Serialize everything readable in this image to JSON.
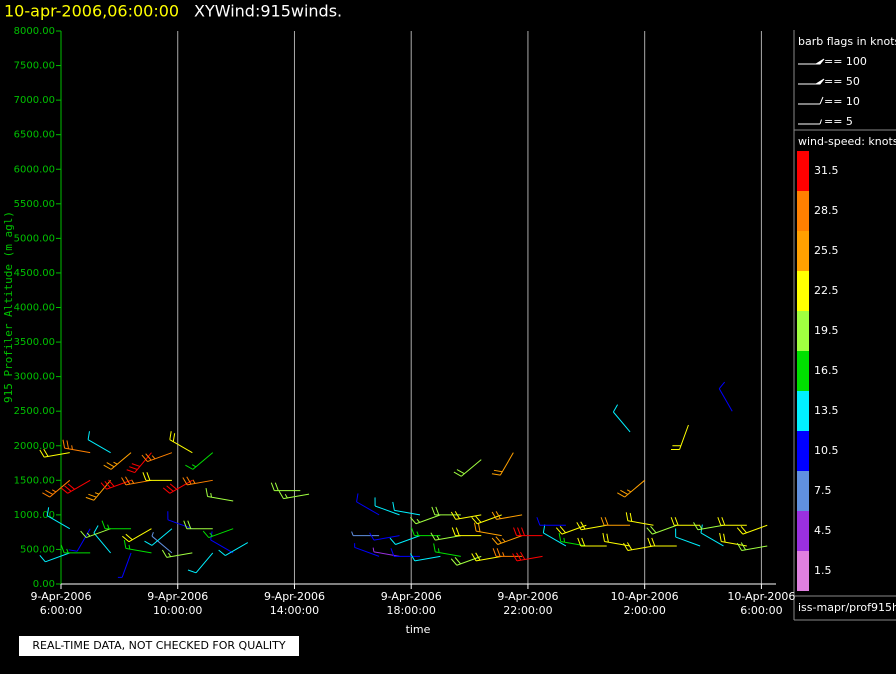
{
  "chart_data": {
    "type": "wind-barb",
    "title": "10-apr-2006,06:00:00",
    "subtitle": "XYWind:915winds.",
    "ylabel": "915 Profiler Altitude (m agl)",
    "xlabel": "time",
    "xlim": [
      6,
      30.5
    ],
    "xticks": [
      {
        "value": 6,
        "label": [
          "9-Apr-2006",
          "6:00:00"
        ]
      },
      {
        "value": 10,
        "label": [
          "9-Apr-2006",
          "10:00:00"
        ]
      },
      {
        "value": 14,
        "label": [
          "9-Apr-2006",
          "14:00:00"
        ]
      },
      {
        "value": 18,
        "label": [
          "9-Apr-2006",
          "18:00:00"
        ]
      },
      {
        "value": 22,
        "label": [
          "9-Apr-2006",
          "22:00:00"
        ]
      },
      {
        "value": 26,
        "label": [
          "10-Apr-2006",
          "2:00:00"
        ]
      },
      {
        "value": 30,
        "label": [
          "10-Apr-2006",
          "6:00:00"
        ]
      }
    ],
    "ylim": [
      0,
      8000
    ],
    "yticks": [
      {
        "value": 0,
        "label": "0.00"
      },
      {
        "value": 500,
        "label": "500.00"
      },
      {
        "value": 1000,
        "label": "1000.00"
      },
      {
        "value": 1500,
        "label": "1500.00"
      },
      {
        "value": 2000,
        "label": "2000.00"
      },
      {
        "value": 2500,
        "label": "2500.00"
      },
      {
        "value": 3000,
        "label": "3000.00"
      },
      {
        "value": 3500,
        "label": "3500.00"
      },
      {
        "value": 4000,
        "label": "4000.00"
      },
      {
        "value": 4500,
        "label": "4500.00"
      },
      {
        "value": 5000,
        "label": "5000.00"
      },
      {
        "value": 5500,
        "label": "5500.00"
      },
      {
        "value": 6000,
        "label": "6000.00"
      },
      {
        "value": 6500,
        "label": "6500.00"
      },
      {
        "value": 7000,
        "label": "7000.00"
      },
      {
        "value": 7500,
        "label": "7500.00"
      },
      {
        "value": 8000,
        "label": "8000.00"
      }
    ],
    "grid": true,
    "barb_flags_title": "barb flags in knots",
    "barb_flags": [
      "== 100",
      "== 50",
      "== 10",
      "== 5"
    ],
    "colorbar_title": "wind-speed: knots",
    "colorbar": {
      "values": [
        31.5,
        28.5,
        25.5,
        22.5,
        19.5,
        16.5,
        13.5,
        10.5,
        7.5,
        4.5,
        1.5
      ],
      "colors": [
        "#ff0000",
        "#ff8000",
        "#ffa000",
        "#ffff00",
        "#a0ff40",
        "#00e000",
        "#00f0ff",
        "#0000ff",
        "#6090e0",
        "#9a30e0",
        "#e080e0"
      ]
    },
    "source": "iss-mapr/prof915h",
    "note": "REAL-TIME DATA, NOT CHECKED FOR QUALITY",
    "barbs": [
      {
        "x": 6.3,
        "y": 450,
        "speed": 14,
        "direction": 250
      },
      {
        "x": 6.3,
        "y": 800,
        "speed": 12,
        "direction": 300
      },
      {
        "x": 6.3,
        "y": 1500,
        "speed": 27,
        "direction": 230
      },
      {
        "x": 6.3,
        "y": 1900,
        "speed": 22,
        "direction": 260
      },
      {
        "x": 7.0,
        "y": 450,
        "speed": 17,
        "direction": 270
      },
      {
        "x": 7.0,
        "y": 800,
        "speed": 10,
        "direction": 210
      },
      {
        "x": 7.0,
        "y": 1500,
        "speed": 31,
        "direction": 240
      },
      {
        "x": 7.0,
        "y": 1900,
        "speed": 29,
        "direction": 280
      },
      {
        "x": 7.7,
        "y": 450,
        "speed": 12,
        "direction": 320
      },
      {
        "x": 7.7,
        "y": 800,
        "speed": 19,
        "direction": 250
      },
      {
        "x": 7.7,
        "y": 1500,
        "speed": 26,
        "direction": 220
      },
      {
        "x": 7.7,
        "y": 1900,
        "speed": 13,
        "direction": 300
      },
      {
        "x": 8.4,
        "y": 450,
        "speed": 9,
        "direction": 200
      },
      {
        "x": 8.4,
        "y": 800,
        "speed": 16,
        "direction": 270
      },
      {
        "x": 8.4,
        "y": 1500,
        "speed": 32,
        "direction": 250
      },
      {
        "x": 8.4,
        "y": 1900,
        "speed": 25,
        "direction": 230
      },
      {
        "x": 9.1,
        "y": 450,
        "speed": 15,
        "direction": 280
      },
      {
        "x": 9.1,
        "y": 800,
        "speed": 22,
        "direction": 240
      },
      {
        "x": 9.1,
        "y": 1500,
        "speed": 29,
        "direction": 260
      },
      {
        "x": 9.1,
        "y": 1900,
        "speed": 31,
        "direction": 220
      },
      {
        "x": 9.8,
        "y": 450,
        "speed": 6,
        "direction": 310
      },
      {
        "x": 9.8,
        "y": 800,
        "speed": 14,
        "direction": 230
      },
      {
        "x": 9.8,
        "y": 1500,
        "speed": 23,
        "direction": 270
      },
      {
        "x": 9.8,
        "y": 1900,
        "speed": 28,
        "direction": 250
      },
      {
        "x": 10.5,
        "y": 450,
        "speed": 18,
        "direction": 260
      },
      {
        "x": 10.5,
        "y": 800,
        "speed": 11,
        "direction": 290
      },
      {
        "x": 10.5,
        "y": 1500,
        "speed": 30,
        "direction": 240
      },
      {
        "x": 10.5,
        "y": 1900,
        "speed": 21,
        "direction": 300
      },
      {
        "x": 11.2,
        "y": 450,
        "speed": 13,
        "direction": 220
      },
      {
        "x": 11.2,
        "y": 800,
        "speed": 20,
        "direction": 270
      },
      {
        "x": 11.2,
        "y": 1500,
        "speed": 27,
        "direction": 260
      },
      {
        "x": 11.2,
        "y": 1900,
        "speed": 16,
        "direction": 230
      },
      {
        "x": 11.9,
        "y": 450,
        "speed": 10,
        "direction": 300
      },
      {
        "x": 11.9,
        "y": 800,
        "speed": 17,
        "direction": 250
      },
      {
        "x": 11.9,
        "y": 1200,
        "speed": 19,
        "direction": 280
      },
      {
        "x": 12.4,
        "y": 600,
        "speed": 12,
        "direction": 240
      },
      {
        "x": 14.2,
        "y": 1350,
        "speed": 20,
        "direction": 270
      },
      {
        "x": 14.5,
        "y": 1300,
        "speed": 18,
        "direction": 260
      },
      {
        "x": 16.9,
        "y": 400,
        "speed": 9,
        "direction": 290
      },
      {
        "x": 16.9,
        "y": 700,
        "speed": 8,
        "direction": 270
      },
      {
        "x": 16.9,
        "y": 1000,
        "speed": 10,
        "direction": 300
      },
      {
        "x": 17.6,
        "y": 400,
        "speed": 5,
        "direction": 280
      },
      {
        "x": 17.6,
        "y": 700,
        "speed": 10,
        "direction": 260
      },
      {
        "x": 17.6,
        "y": 1000,
        "speed": 12,
        "direction": 290
      },
      {
        "x": 18.3,
        "y": 400,
        "speed": 11,
        "direction": 270
      },
      {
        "x": 18.3,
        "y": 700,
        "speed": 13,
        "direction": 250
      },
      {
        "x": 18.3,
        "y": 1000,
        "speed": 14,
        "direction": 280
      },
      {
        "x": 19.0,
        "y": 400,
        "speed": 14,
        "direction": 260
      },
      {
        "x": 19.0,
        "y": 700,
        "speed": 16,
        "direction": 270
      },
      {
        "x": 19.0,
        "y": 1000,
        "speed": 18,
        "direction": 250
      },
      {
        "x": 19.7,
        "y": 400,
        "speed": 17,
        "direction": 280
      },
      {
        "x": 19.7,
        "y": 700,
        "speed": 19,
        "direction": 260
      },
      {
        "x": 19.7,
        "y": 1000,
        "speed": 20,
        "direction": 270
      },
      {
        "x": 20.4,
        "y": 400,
        "speed": 20,
        "direction": 250
      },
      {
        "x": 20.4,
        "y": 700,
        "speed": 22,
        "direction": 270
      },
      {
        "x": 20.4,
        "y": 1000,
        "speed": 21,
        "direction": 260
      },
      {
        "x": 21.1,
        "y": 400,
        "speed": 23,
        "direction": 260
      },
      {
        "x": 21.1,
        "y": 700,
        "speed": 24,
        "direction": 280
      },
      {
        "x": 21.1,
        "y": 1000,
        "speed": 22,
        "direction": 250
      },
      {
        "x": 21.8,
        "y": 400,
        "speed": 27,
        "direction": 270
      },
      {
        "x": 21.8,
        "y": 700,
        "speed": 26,
        "direction": 250
      },
      {
        "x": 21.8,
        "y": 1000,
        "speed": 24,
        "direction": 260
      },
      {
        "x": 22.5,
        "y": 400,
        "speed": 31,
        "direction": 260
      },
      {
        "x": 22.5,
        "y": 700,
        "speed": 30,
        "direction": 270
      },
      {
        "x": 20.4,
        "y": 1800,
        "speed": 20,
        "direction": 230
      },
      {
        "x": 21.5,
        "y": 1900,
        "speed": 24,
        "direction": 210
      },
      {
        "x": 23.3,
        "y": 550,
        "speed": 12,
        "direction": 300
      },
      {
        "x": 23.3,
        "y": 850,
        "speed": 10,
        "direction": 270
      },
      {
        "x": 24.0,
        "y": 550,
        "speed": 16,
        "direction": 280
      },
      {
        "x": 24.0,
        "y": 850,
        "speed": 22,
        "direction": 250
      },
      {
        "x": 24.7,
        "y": 550,
        "speed": 21,
        "direction": 270
      },
      {
        "x": 24.7,
        "y": 850,
        "speed": 23,
        "direction": 260
      },
      {
        "x": 25.5,
        "y": 550,
        "speed": 22,
        "direction": 280
      },
      {
        "x": 25.5,
        "y": 850,
        "speed": 24,
        "direction": 270
      },
      {
        "x": 26.3,
        "y": 550,
        "speed": 23,
        "direction": 260
      },
      {
        "x": 26.3,
        "y": 850,
        "speed": 21,
        "direction": 280
      },
      {
        "x": 27.1,
        "y": 550,
        "speed": 22,
        "direction": 270
      },
      {
        "x": 27.1,
        "y": 850,
        "speed": 20,
        "direction": 250
      },
      {
        "x": 27.9,
        "y": 550,
        "speed": 14,
        "direction": 290
      },
      {
        "x": 27.9,
        "y": 850,
        "speed": 23,
        "direction": 270
      },
      {
        "x": 28.7,
        "y": 550,
        "speed": 12,
        "direction": 300
      },
      {
        "x": 28.7,
        "y": 850,
        "speed": 19,
        "direction": 260
      },
      {
        "x": 29.5,
        "y": 550,
        "speed": 21,
        "direction": 280
      },
      {
        "x": 29.5,
        "y": 850,
        "speed": 22,
        "direction": 270
      },
      {
        "x": 30.2,
        "y": 550,
        "speed": 20,
        "direction": 260
      },
      {
        "x": 30.2,
        "y": 850,
        "speed": 21,
        "direction": 250
      },
      {
        "x": 25.5,
        "y": 2200,
        "speed": 12,
        "direction": 320
      },
      {
        "x": 27.5,
        "y": 2300,
        "speed": 22,
        "direction": 200
      },
      {
        "x": 29.0,
        "y": 2500,
        "speed": 10,
        "direction": 330
      },
      {
        "x": 26.0,
        "y": 1500,
        "speed": 26,
        "direction": 230
      }
    ]
  }
}
